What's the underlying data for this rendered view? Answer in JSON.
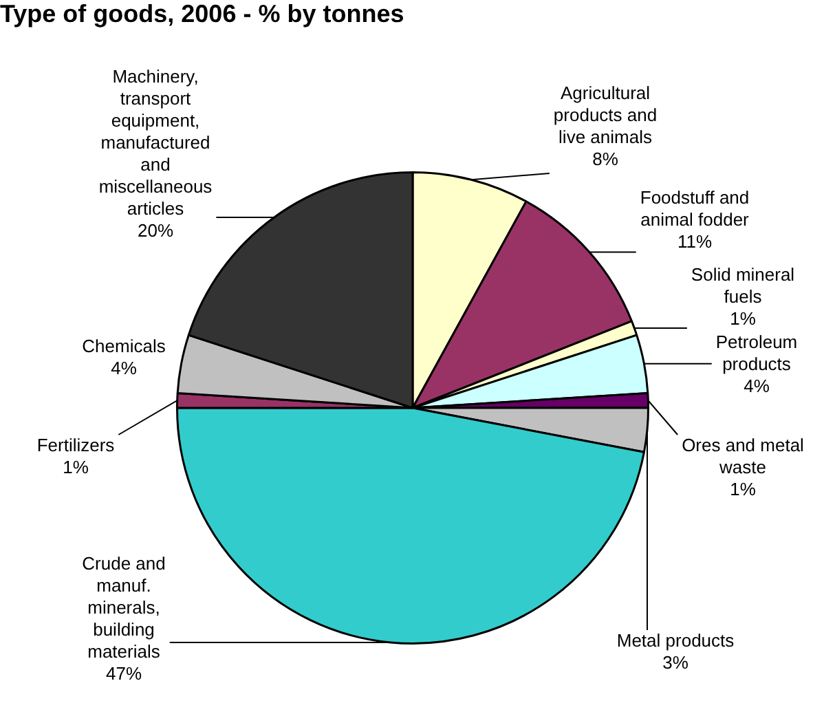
{
  "chart_data": {
    "type": "pie",
    "title": "Type of goods, 2006 - % by tonnes",
    "categories": [
      "Agricultural products and live animals",
      "Foodstuff and animal fodder",
      "Solid mineral fuels",
      "Petroleum products",
      "Ores and metal waste",
      "Metal products",
      "Crude and manuf. minerals, building materials",
      "Fertilizers",
      "Chemicals",
      "Machinery, transport equipment, manufactured and miscellaneous articles"
    ],
    "values": [
      8,
      11,
      1,
      4,
      1,
      3,
      47,
      1,
      4,
      20
    ],
    "colors": [
      "#ffffcc",
      "#993366",
      "#ffffcc",
      "#ccffff",
      "#660066",
      "#c0c0c0",
      "#33cccc",
      "#993366",
      "#c0c0c0",
      "#333333"
    ],
    "value_labels": [
      "8%",
      "11%",
      "1%",
      "4%",
      "1%",
      "3%",
      "47%",
      "1%",
      "4%",
      "20%"
    ],
    "legend": false
  }
}
